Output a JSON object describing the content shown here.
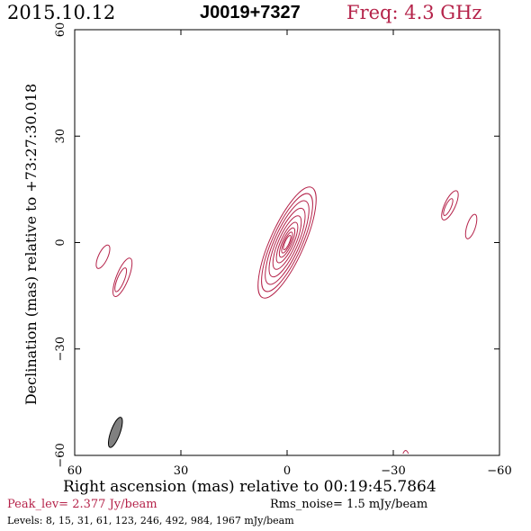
{
  "header": {
    "date": "2015.10.12",
    "source": "J0019+7327",
    "freq_label": "Freq: 4.3 GHz"
  },
  "footer": {
    "peak_label": "Peak_lev=",
    "peak_value": "2.377 Jy/beam",
    "rms_label": "Rms_noise=",
    "rms_value": "1.5 mJy/beam",
    "levels_label": "Levels:",
    "levels_values": "8, 15, 31, 61, 123, 246, 492, 984, 1967 mJy/beam"
  },
  "colors": {
    "contour": "#b5234a",
    "beam": "#808080",
    "axes": "#000000"
  },
  "chart_data": {
    "type": "contour",
    "xlabel": "Right ascension (mas) relative to 00:19:45.7864",
    "ylabel": "Declination (mas) relative to +73:27:30.018",
    "xlim": [
      60,
      -60
    ],
    "ylim": [
      -60,
      60
    ],
    "xticks": [
      60,
      30,
      0,
      -30,
      -60
    ],
    "yticks": [
      -60,
      -30,
      0,
      30,
      60
    ],
    "xtick_labels": [
      "60",
      "30",
      "0",
      "−30",
      "−60"
    ],
    "ytick_labels": [
      "−60",
      "−30",
      "0",
      "30",
      "60"
    ],
    "core": {
      "ra": 0,
      "dec": 0,
      "pa_deg": 24,
      "n_contours": 9,
      "major": [
        2.2,
        3.2,
        4.5,
        6.2,
        8.2,
        10.5,
        12.8,
        15,
        17
      ],
      "minor": [
        0.6,
        0.9,
        1.3,
        1.8,
        2.4,
        3.0,
        3.6,
        4.2,
        4.8
      ]
    },
    "components": [
      {
        "ra": 46.5,
        "dec": -9.8,
        "major": 5.8,
        "minor": 1.7,
        "pa_deg": 22
      },
      {
        "ra": 47,
        "dec": -10.5,
        "major": 3.6,
        "minor": 1.0,
        "pa_deg": 22
      },
      {
        "ra": 52,
        "dec": -4,
        "major": 3.6,
        "minor": 1.3,
        "pa_deg": 25
      },
      {
        "ra": -46,
        "dec": 10.5,
        "major": 4.5,
        "minor": 1.5,
        "pa_deg": 25
      },
      {
        "ra": -45.5,
        "dec": 10,
        "major": 2.6,
        "minor": 0.8,
        "pa_deg": 25
      },
      {
        "ra": -52,
        "dec": 4.5,
        "major": 3.6,
        "minor": 1.2,
        "pa_deg": 18
      }
    ],
    "beam": {
      "ra": 48.5,
      "dec": -53.5,
      "major": 4.5,
      "minor": 1.3,
      "pa_deg": 20
    },
    "edge_fragment": {
      "ra": -33.5,
      "dec": -59
    }
  }
}
